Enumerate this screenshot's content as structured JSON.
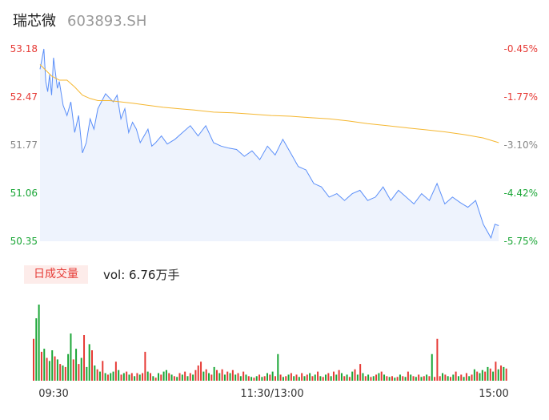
{
  "header": {
    "name": "瑞芯微",
    "code": "603893.SH"
  },
  "volume_panel": {
    "tag": "日成交量",
    "text": "vol: 6.76万手"
  },
  "colors": {
    "price_line": "#5b8ff9",
    "avg_line": "#f5b731",
    "area_fill": "#eef3fd",
    "up": "#e63a35",
    "down": "#1aa636",
    "neutral": "#888888"
  },
  "chart_data": [
    {
      "type": "line",
      "title": "",
      "xlabel": "",
      "ylabel": "",
      "ylim": [
        50.35,
        53.18
      ],
      "y_ticks_left": [
        "53.18",
        "52.47",
        "51.77",
        "51.06",
        "50.35"
      ],
      "y_ticks_right": [
        "-0.45%",
        "-1.77%",
        "-3.10%",
        "-4.42%",
        "-5.75%"
      ],
      "x_tick_labels": [
        "09:30",
        "11:30/13:00",
        "15:00"
      ],
      "grid": false,
      "series": [
        {
          "role": "price",
          "x_minutes": [
            0,
            2,
            3,
            4,
            5,
            6,
            7,
            9,
            10,
            12,
            14,
            16,
            18,
            20,
            22,
            24,
            26,
            28,
            30,
            34,
            38,
            40,
            42,
            44,
            46,
            48,
            50,
            52,
            56,
            58,
            60,
            63,
            66,
            70,
            74,
            78,
            82,
            86,
            90,
            94,
            98,
            102,
            106,
            110,
            114,
            118,
            122,
            126,
            130,
            134,
            138,
            142,
            146,
            150,
            154,
            158,
            162,
            166,
            170,
            174,
            178,
            182,
            186,
            190,
            194,
            198,
            202,
            206,
            210,
            214,
            218,
            222,
            226,
            230,
            234,
            236,
            238
          ],
          "values": [
            52.88,
            53.18,
            52.7,
            52.55,
            52.8,
            52.5,
            53.05,
            52.6,
            52.7,
            52.35,
            52.2,
            52.4,
            51.95,
            52.2,
            51.65,
            51.8,
            52.15,
            52.0,
            52.3,
            52.52,
            52.4,
            52.5,
            52.15,
            52.3,
            51.95,
            52.1,
            52.0,
            51.8,
            52.0,
            51.75,
            51.8,
            51.9,
            51.78,
            51.85,
            51.95,
            52.05,
            51.9,
            52.05,
            51.8,
            51.75,
            51.72,
            51.7,
            51.6,
            51.68,
            51.55,
            51.75,
            51.62,
            51.85,
            51.65,
            51.45,
            51.4,
            51.2,
            51.15,
            51.0,
            51.05,
            50.95,
            51.05,
            51.1,
            50.95,
            51.0,
            51.15,
            50.95,
            51.1,
            51.0,
            50.9,
            51.05,
            50.95,
            51.2,
            50.9,
            51.0,
            50.92,
            50.85,
            50.95,
            50.6,
            50.4,
            50.6,
            50.58
          ]
        },
        {
          "role": "average",
          "x_minutes": [
            0,
            6,
            10,
            14,
            18,
            22,
            26,
            30,
            36,
            42,
            48,
            56,
            64,
            72,
            80,
            90,
            100,
            110,
            120,
            130,
            140,
            150,
            160,
            170,
            180,
            190,
            200,
            210,
            220,
            230,
            238
          ],
          "values": [
            52.95,
            52.78,
            52.72,
            52.72,
            52.62,
            52.5,
            52.45,
            52.42,
            52.42,
            52.4,
            52.38,
            52.35,
            52.32,
            52.3,
            52.28,
            52.25,
            52.24,
            52.22,
            52.2,
            52.19,
            52.17,
            52.15,
            52.12,
            52.08,
            52.05,
            52.02,
            51.99,
            51.96,
            51.92,
            51.87,
            51.8
          ]
        }
      ]
    },
    {
      "type": "bar",
      "title": "",
      "xlabel": "",
      "ylabel": "",
      "ylim": [
        0,
        1
      ],
      "bars": {
        "values": [
          0.55,
          0.82,
          1.0,
          0.38,
          0.42,
          0.3,
          0.26,
          0.4,
          0.32,
          0.28,
          0.22,
          0.2,
          0.18,
          0.35,
          0.62,
          0.28,
          0.42,
          0.22,
          0.3,
          0.6,
          0.18,
          0.48,
          0.4,
          0.2,
          0.15,
          0.12,
          0.26,
          0.1,
          0.08,
          0.1,
          0.12,
          0.25,
          0.14,
          0.08,
          0.1,
          0.12,
          0.08,
          0.1,
          0.06,
          0.1,
          0.08,
          0.1,
          0.38,
          0.12,
          0.1,
          0.06,
          0.04,
          0.1,
          0.08,
          0.12,
          0.14,
          0.1,
          0.08,
          0.06,
          0.05,
          0.1,
          0.08,
          0.12,
          0.06,
          0.1,
          0.08,
          0.14,
          0.2,
          0.25,
          0.12,
          0.15,
          0.1,
          0.08,
          0.18,
          0.14,
          0.1,
          0.15,
          0.08,
          0.12,
          0.1,
          0.14,
          0.08,
          0.1,
          0.06,
          0.12,
          0.08,
          0.06,
          0.05,
          0.04,
          0.06,
          0.08,
          0.05,
          0.06,
          0.1,
          0.08,
          0.12,
          0.06,
          0.35,
          0.08,
          0.05,
          0.06,
          0.08,
          0.1,
          0.06,
          0.08,
          0.05,
          0.1,
          0.06,
          0.08,
          0.1,
          0.06,
          0.08,
          0.12,
          0.06,
          0.05,
          0.08,
          0.1,
          0.06,
          0.12,
          0.08,
          0.14,
          0.1,
          0.06,
          0.08,
          0.05,
          0.12,
          0.15,
          0.08,
          0.22,
          0.1,
          0.06,
          0.08,
          0.05,
          0.06,
          0.08,
          0.1,
          0.12,
          0.08,
          0.06,
          0.05,
          0.06,
          0.04,
          0.05,
          0.08,
          0.06,
          0.05,
          0.12,
          0.08,
          0.06,
          0.05,
          0.08,
          0.05,
          0.06,
          0.08,
          0.06,
          0.35,
          0.05,
          0.55,
          0.06,
          0.1,
          0.08,
          0.06,
          0.05,
          0.08,
          0.12,
          0.06,
          0.08,
          0.05,
          0.1,
          0.06,
          0.08,
          0.15,
          0.12,
          0.1,
          0.14,
          0.12,
          0.18,
          0.16,
          0.12,
          0.25,
          0.15,
          0.2,
          0.18,
          0.16
        ],
        "colors": [
          "up",
          "down",
          "down",
          "up",
          "down",
          "up",
          "down",
          "down",
          "up",
          "down",
          "up",
          "down",
          "up",
          "down",
          "down",
          "up",
          "down",
          "up",
          "down",
          "up",
          "down",
          "down",
          "up",
          "down",
          "up",
          "down",
          "up",
          "down",
          "up",
          "down",
          "down",
          "up",
          "down",
          "up",
          "down",
          "up",
          "down",
          "up",
          "down",
          "up",
          "down",
          "up",
          "up",
          "down",
          "up",
          "down",
          "up",
          "down",
          "up",
          "down",
          "down",
          "up",
          "down",
          "up",
          "down",
          "up",
          "down",
          "up",
          "down",
          "up",
          "down",
          "up",
          "up",
          "up",
          "down",
          "up",
          "down",
          "up",
          "down",
          "up",
          "down",
          "up",
          "down",
          "up",
          "down",
          "up",
          "down",
          "up",
          "down",
          "up",
          "down",
          "up",
          "down",
          "up",
          "down",
          "up",
          "down",
          "up",
          "down",
          "up",
          "down",
          "up",
          "down",
          "up",
          "down",
          "up",
          "down",
          "up",
          "down",
          "up",
          "down",
          "up",
          "down",
          "up",
          "down",
          "up",
          "down",
          "up",
          "down",
          "up",
          "down",
          "up",
          "down",
          "up",
          "down",
          "up",
          "down",
          "up",
          "down",
          "up",
          "down",
          "up",
          "down",
          "up",
          "down",
          "up",
          "down",
          "up",
          "down",
          "up",
          "down",
          "up",
          "down",
          "up",
          "down",
          "up",
          "down",
          "up",
          "down",
          "up",
          "down",
          "up",
          "down",
          "up",
          "down",
          "up",
          "down",
          "up",
          "down",
          "up",
          "down",
          "up",
          "up",
          "up",
          "down",
          "up",
          "down",
          "up",
          "down",
          "up",
          "down",
          "up",
          "down",
          "up",
          "down",
          "up",
          "down",
          "up",
          "down",
          "down",
          "up",
          "down",
          "up",
          "down",
          "up",
          "down",
          "up",
          "down",
          "up",
          "neutral"
        ]
      }
    }
  ]
}
